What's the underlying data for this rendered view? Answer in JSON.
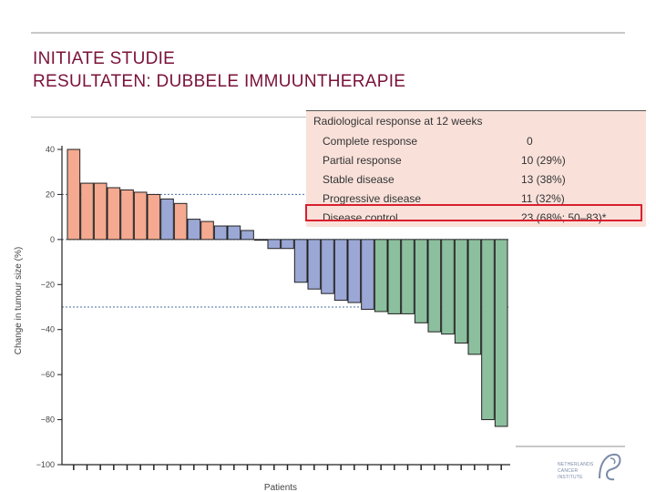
{
  "slide": {
    "title_line1": "INITIATE STUDIE",
    "title_line2": "RESULTATEN: DUBBELE IMMUUNTHERAPIE"
  },
  "colors": {
    "title": "#7a1238",
    "progressive": "#f4a990",
    "partial": "#9ba8d6",
    "stable": "#8cbf9e",
    "reference_line": "#4a6fa5",
    "highlight": "#d9202e"
  },
  "response_table": {
    "heading": "Radiological response at 12 weeks",
    "rows": [
      {
        "label": "Complete response",
        "value": "0"
      },
      {
        "label": "Partial response",
        "value": "10 (29%)"
      },
      {
        "label": "Stable disease",
        "value": "13 (38%)"
      },
      {
        "label": "Progressive disease",
        "value": "11 (32%)"
      },
      {
        "label": "Disease control",
        "value": "23 (68%; 50–83)*"
      }
    ],
    "highlighted_row": 4
  },
  "logo": {
    "line1": "NETHERLANDS",
    "line2": "CANCER",
    "line3": "INSTITUTE"
  },
  "chart_data": {
    "type": "bar",
    "ylabel": "Change in tumour size (%)",
    "xlabel": "Patients",
    "ylim": [
      -100,
      40
    ],
    "yticks": [
      40,
      20,
      0,
      -20,
      -40,
      -60,
      -80,
      -100
    ],
    "ytick_labels": [
      "40",
      "20",
      "0",
      "−20",
      "−40",
      "−60",
      "−80",
      "−100"
    ],
    "reference_lines": [
      20,
      -30
    ],
    "values": [
      40,
      25,
      25,
      23,
      22,
      21,
      20,
      18,
      16,
      9,
      8,
      6,
      6,
      4,
      0,
      -4,
      -4,
      -19,
      -22,
      -24,
      -27,
      -28,
      -31,
      -32,
      -33,
      -33,
      -37,
      -41,
      -42,
      -46,
      -51,
      -80,
      -83
    ],
    "responses": [
      "progressive",
      "progressive",
      "progressive",
      "progressive",
      "progressive",
      "progressive",
      "progressive",
      "partial",
      "progressive",
      "partial",
      "progressive",
      "partial",
      "partial",
      "partial",
      "partial",
      "partial",
      "partial",
      "partial",
      "partial",
      "partial",
      "partial",
      "partial",
      "partial",
      "stable",
      "stable",
      "stable",
      "stable",
      "stable",
      "stable",
      "stable",
      "stable",
      "stable",
      "stable"
    ]
  }
}
